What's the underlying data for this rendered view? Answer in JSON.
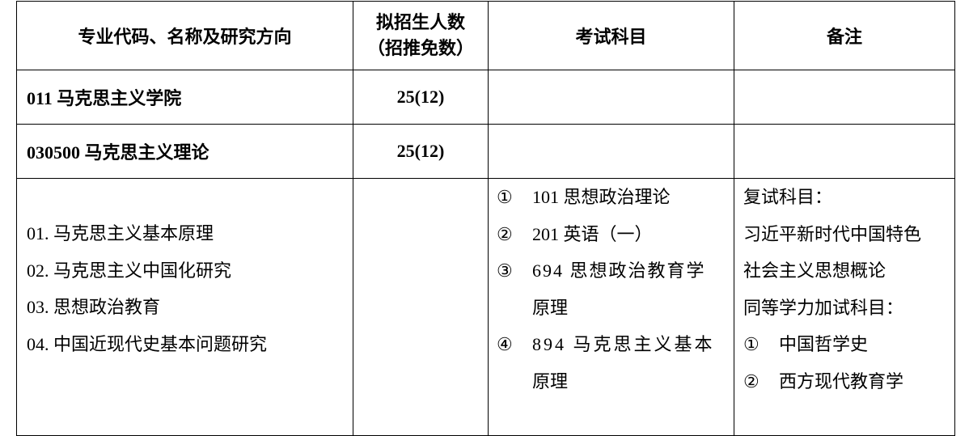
{
  "headers": {
    "major": "专业代码、名称及研究方向",
    "quota_line1": "拟招生人数",
    "quota_line2": "（招推免数）",
    "exam": "考试科目",
    "notes": "备注"
  },
  "rows": [
    {
      "name": "011 马克思主义学院",
      "quota": "25(12)"
    },
    {
      "name": "030500 马克思主义理论",
      "quota": "25(12)"
    }
  ],
  "directions": [
    "01.  马克思主义基本原理",
    "02.  马克思主义中国化研究",
    "03.  思想政治教育",
    "04.  中国近现代史基本问题研究"
  ],
  "exams": [
    {
      "mark": "①",
      "text": "101 思想政治理论"
    },
    {
      "mark": "②",
      "text": "201 英语（一）"
    },
    {
      "mark": "③",
      "text": "694 思想政治教育学",
      "cont": "原理"
    },
    {
      "mark": "④",
      "text": "894 马克思主义基本",
      "cont": "原理"
    }
  ],
  "notes": {
    "retest_label": "复试科目：",
    "retest_line1": "习近平新时代中国特色",
    "retest_line2": "社会主义思想概论",
    "extra_label": "同等学力加试科目：",
    "extra": [
      {
        "mark": "①",
        "text": "中国哲学史"
      },
      {
        "mark": "②",
        "text": "西方现代教育学"
      }
    ]
  }
}
